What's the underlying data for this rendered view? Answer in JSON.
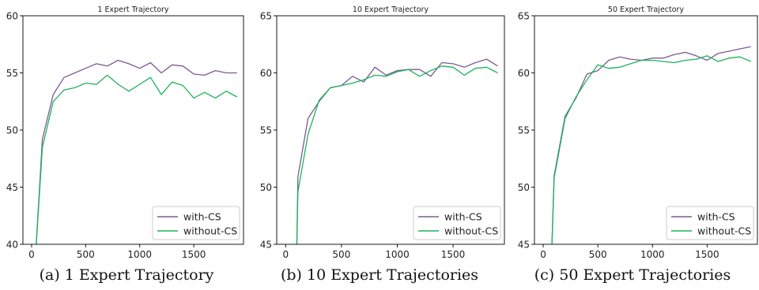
{
  "figure": {
    "captions": [
      "(a) 1 Expert Trajectory",
      "(b) 10 Expert Trajectories",
      "(c) 50 Expert Trajectories"
    ]
  },
  "colors": {
    "with_cs": "#7b5a96",
    "without_cs": "#1db35a"
  },
  "chart_data": [
    {
      "type": "line",
      "title": "1 Expert Trajectory",
      "xlabel": "",
      "ylabel": "",
      "xlim": [
        -80,
        1960
      ],
      "ylim": [
        40,
        60
      ],
      "xticks": [
        0,
        500,
        1000,
        1500
      ],
      "yticks": [
        40,
        45,
        50,
        55,
        60
      ],
      "grid": false,
      "legend": "bottom-right",
      "x": [
        40,
        100,
        200,
        300,
        400,
        500,
        600,
        700,
        800,
        900,
        1000,
        1100,
        1200,
        1300,
        1400,
        1500,
        1600,
        1700,
        1800,
        1900
      ],
      "series": [
        {
          "name": "with-CS",
          "values": [
            39.5,
            49.2,
            53.1,
            54.6,
            55.0,
            55.4,
            55.8,
            55.6,
            56.1,
            55.8,
            55.4,
            55.9,
            55.0,
            55.7,
            55.6,
            54.9,
            54.8,
            55.2,
            55.0,
            55.0
          ]
        },
        {
          "name": "without-CS",
          "values": [
            39.5,
            48.5,
            52.5,
            53.5,
            53.7,
            54.1,
            54.0,
            54.8,
            54.0,
            53.4,
            54.0,
            54.6,
            53.1,
            54.2,
            53.9,
            52.8,
            53.3,
            52.8,
            53.4,
            52.9
          ]
        }
      ]
    },
    {
      "type": "line",
      "title": "10 Expert Trajectory",
      "xlabel": "",
      "ylabel": "",
      "xlim": [
        -80,
        1960
      ],
      "ylim": [
        45,
        65
      ],
      "xticks": [
        0,
        500,
        1000,
        1500
      ],
      "yticks": [
        45,
        50,
        55,
        60,
        65
      ],
      "grid": false,
      "legend": "bottom-right",
      "x": [
        100,
        110,
        200,
        300,
        400,
        500,
        600,
        700,
        800,
        900,
        1000,
        1100,
        1200,
        1300,
        1400,
        1500,
        1600,
        1700,
        1800,
        1900
      ],
      "series": [
        {
          "name": "with-CS",
          "values": [
            44.8,
            50.9,
            56.0,
            57.5,
            58.7,
            58.9,
            59.7,
            59.2,
            60.5,
            59.8,
            60.2,
            60.3,
            60.3,
            59.7,
            60.9,
            60.8,
            60.5,
            60.9,
            61.2,
            60.6
          ]
        },
        {
          "name": "without-CS",
          "values": [
            44.8,
            49.6,
            54.6,
            57.6,
            58.7,
            58.9,
            59.1,
            59.4,
            59.8,
            59.7,
            60.1,
            60.3,
            59.7,
            60.2,
            60.6,
            60.5,
            59.8,
            60.4,
            60.5,
            60.0
          ]
        }
      ]
    },
    {
      "type": "line",
      "title": "50 Expert Trajectory",
      "xlabel": "",
      "ylabel": "",
      "xlim": [
        -80,
        1960
      ],
      "ylim": [
        45,
        65
      ],
      "xticks": [
        0,
        500,
        1000,
        1500
      ],
      "yticks": [
        45,
        50,
        55,
        60,
        65
      ],
      "grid": false,
      "legend": "bottom-right",
      "x": [
        80,
        100,
        200,
        300,
        400,
        500,
        600,
        700,
        800,
        900,
        1000,
        1100,
        1200,
        1300,
        1400,
        1500,
        1600,
        1700,
        1800,
        1900
      ],
      "series": [
        {
          "name": "with-CS",
          "values": [
            45.0,
            51.0,
            56.2,
            57.8,
            59.9,
            60.2,
            61.1,
            61.4,
            61.2,
            61.1,
            61.3,
            61.3,
            61.6,
            61.8,
            61.5,
            61.1,
            61.7,
            61.9,
            62.1,
            62.3
          ]
        },
        {
          "name": "without-CS",
          "values": [
            45.0,
            50.8,
            56.0,
            57.9,
            59.4,
            60.7,
            60.4,
            60.5,
            60.8,
            61.1,
            61.1,
            61.0,
            60.9,
            61.1,
            61.2,
            61.5,
            61.0,
            61.3,
            61.4,
            61.0
          ]
        }
      ]
    }
  ]
}
